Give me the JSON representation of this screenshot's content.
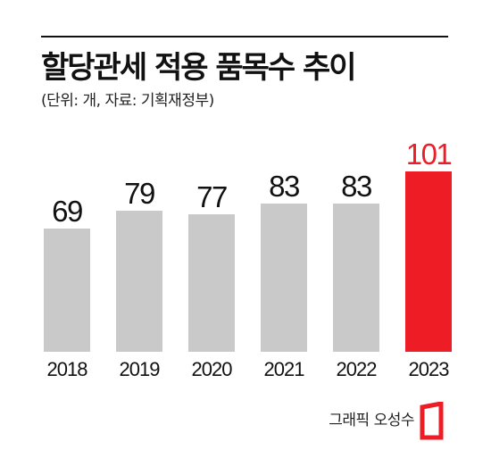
{
  "title": "할당관세 적용 품목수 추이",
  "subtitle": "(단위: 개, 자료: 기획재정부)",
  "credit": "그래픽 오성수",
  "colors": {
    "bar": "#c9c9c9",
    "highlight": "#ee1c25",
    "text": "#111111",
    "highlight_text": "#ee1c25"
  },
  "chart_data": {
    "type": "bar",
    "categories": [
      "2018",
      "2019",
      "2020",
      "2021",
      "2022",
      "2023"
    ],
    "values": [
      69,
      79,
      77,
      83,
      83,
      101
    ],
    "highlight_index": 5,
    "title": "할당관세 적용 품목수 추이",
    "xlabel": "",
    "ylabel": "",
    "ylim": [
      0,
      101
    ],
    "grid": false,
    "legend": "none"
  }
}
